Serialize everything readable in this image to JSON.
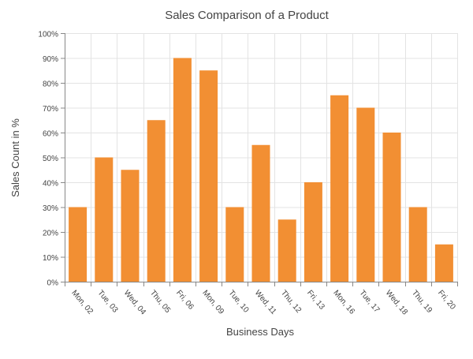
{
  "chart_data": {
    "type": "bar",
    "title": "Sales Comparison of a Product",
    "xlabel": "Business Days",
    "ylabel": "Sales Count in %",
    "categories": [
      "Mon, 02",
      "Tue, 03",
      "Wed, 04",
      "Thu, 05",
      "Fri, 06",
      "Mon, 09",
      "Tue, 10",
      "Wed, 11",
      "Thu, 12",
      "Fri, 13",
      "Mon, 16",
      "Tue, 17",
      "Wed, 18",
      "Thu, 19",
      "Fri, 20"
    ],
    "values": [
      30,
      50,
      45,
      65,
      90,
      85,
      30,
      55,
      25,
      40,
      75,
      70,
      60,
      30,
      15
    ],
    "ylim": [
      0,
      100
    ],
    "yticks": [
      "0%",
      "10%",
      "20%",
      "30%",
      "40%",
      "50%",
      "60%",
      "70%",
      "80%",
      "90%",
      "100%"
    ],
    "grid": true,
    "bar_color": "#f28f33"
  }
}
